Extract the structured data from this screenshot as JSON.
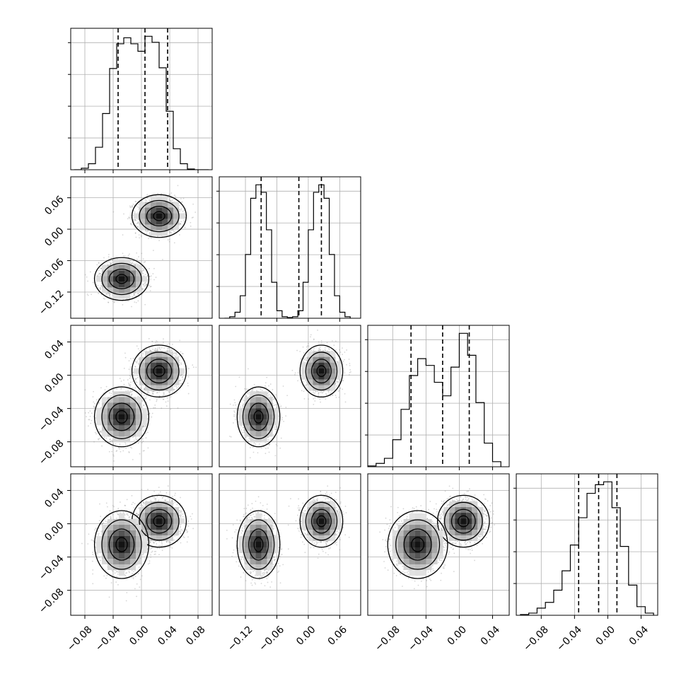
{
  "chart_data": {
    "type": "corner",
    "colors": {
      "axes": "#000000",
      "grid": "#b0b0b0",
      "points": "#8a8a8a",
      "density_dark": "#000000"
    },
    "grid": true,
    "parameters": [
      {
        "xlim": [
          -0.1,
          0.1
        ],
        "ticks": [
          -0.08,
          -0.04,
          0.0,
          0.04,
          0.08
        ],
        "tick_labels": [
          "−0.08",
          "−0.04",
          "0.00",
          "0.04",
          "0.08"
        ],
        "quantiles": [
          -0.033,
          0.005,
          0.037
        ],
        "histogram": {
          "bins": [
            -0.095,
            -0.085,
            -0.075,
            -0.065,
            -0.055,
            -0.045,
            -0.035,
            -0.025,
            -0.015,
            -0.005,
            0.005,
            0.015,
            0.025,
            0.035,
            0.045,
            0.055,
            0.065,
            0.075,
            0.085,
            0.095
          ],
          "counts": [
            0,
            2,
            8,
            30,
            75,
            135,
            168,
            176,
            168,
            158,
            178,
            170,
            136,
            78,
            28,
            8,
            1,
            0,
            0
          ]
        }
      },
      {
        "xlim": [
          -0.17,
          0.1
        ],
        "ticks": [
          -0.12,
          -0.06,
          0.0,
          0.06
        ],
        "tick_labels": [
          "−0.12",
          "−0.06",
          "0.00",
          "0.06"
        ],
        "quantiles": [
          -0.09,
          -0.018,
          0.025
        ],
        "histogram": {
          "bins": [
            -0.16,
            -0.15,
            -0.14,
            -0.13,
            -0.12,
            -0.11,
            -0.1,
            -0.09,
            -0.08,
            -0.07,
            -0.06,
            -0.05,
            -0.04,
            -0.03,
            -0.02,
            -0.01,
            0.0,
            0.01,
            0.02,
            0.03,
            0.04,
            0.05,
            0.06,
            0.07,
            0.08
          ],
          "counts": [
            0,
            2,
            8,
            30,
            85,
            160,
            178,
            168,
            118,
            48,
            10,
            2,
            1,
            2,
            10,
            48,
            118,
            168,
            178,
            160,
            85,
            30,
            8,
            2
          ]
        }
      },
      {
        "xlim": [
          -0.11,
          0.06
        ],
        "ticks": [
          -0.08,
          -0.04,
          0.0,
          0.04
        ],
        "tick_labels": [
          "−0.08",
          "−0.04",
          "0.00",
          "0.04"
        ],
        "yticks": [
          -0.08,
          -0.04,
          0.0,
          0.04
        ],
        "ytick_labels": [
          "−0.08",
          "−0.04",
          "0.00",
          "0.04"
        ],
        "quantiles": [
          -0.058,
          -0.02,
          0.012
        ],
        "histogram": {
          "bins": [
            -0.11,
            -0.1,
            -0.09,
            -0.08,
            -0.07,
            -0.06,
            -0.05,
            -0.04,
            -0.03,
            -0.02,
            -0.01,
            0.0,
            0.01,
            0.02,
            0.03,
            0.04,
            0.05
          ],
          "counts": [
            1,
            4,
            10,
            32,
            68,
            108,
            128,
            120,
            100,
            84,
            118,
            158,
            132,
            76,
            28,
            6
          ]
        }
      },
      {
        "xlim": [
          -0.11,
          0.06
        ],
        "ticks": [
          -0.08,
          -0.04,
          0.0,
          0.04
        ],
        "tick_labels": [
          "−0.08",
          "−0.04",
          "0.00",
          "0.04"
        ],
        "yticks": [
          -0.08,
          -0.04,
          0.0,
          0.04
        ],
        "ytick_labels": [
          "−0.08",
          "−0.04",
          "0.00",
          "0.04"
        ],
        "quantiles": [
          -0.035,
          -0.011,
          0.011
        ],
        "histogram": {
          "bins": [
            -0.105,
            -0.095,
            -0.085,
            -0.075,
            -0.065,
            -0.055,
            -0.045,
            -0.035,
            -0.025,
            -0.015,
            -0.005,
            0.005,
            0.015,
            0.025,
            0.035,
            0.045,
            0.055
          ],
          "counts": [
            1,
            3,
            10,
            18,
            35,
            62,
            98,
            136,
            170,
            182,
            186,
            150,
            96,
            42,
            12,
            3
          ]
        }
      }
    ],
    "param1_yticks": [
      0.06,
      0.0,
      -0.06,
      -0.12
    ],
    "param1_ytick_labels": [
      "0.06",
      "0.00",
      "−0.06",
      "−0.12"
    ],
    "param0_y_note": "",
    "clusters": [
      {
        "mean": [
          0.025,
          0.025,
          0.005,
          0.003
        ],
        "sd": [
          0.016,
          0.017,
          0.013,
          0.013
        ],
        "weight": 0.5
      },
      {
        "mean": [
          -0.028,
          -0.095,
          -0.05,
          -0.025
        ],
        "sd": [
          0.016,
          0.017,
          0.015,
          0.017
        ],
        "weight": 0.5
      }
    ]
  }
}
